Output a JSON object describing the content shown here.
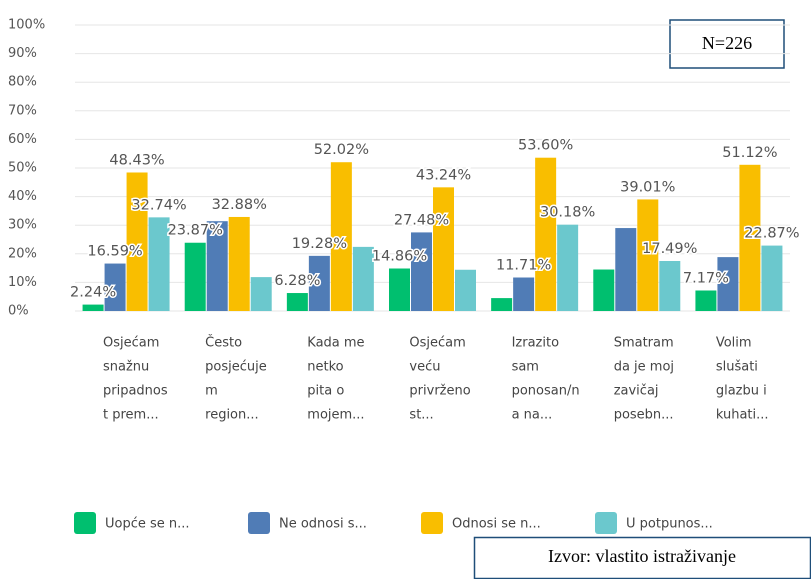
{
  "chart_data": {
    "type": "bar",
    "categories": [
      [
        "Osjećam",
        "snažnu",
        "pripadnos",
        "t prem..."
      ],
      [
        "Često",
        "posjećuje",
        "m",
        "region..."
      ],
      [
        "Kada me",
        "netko",
        "pita o",
        "mojem..."
      ],
      [
        "Osjećam",
        "veću",
        "privrženo",
        "st..."
      ],
      [
        "Izrazito",
        "sam",
        "ponosan/n",
        "a na..."
      ],
      [
        "Smatram",
        "da je moj",
        "zavičaj",
        "posebn..."
      ],
      [
        "Volim",
        "slušati",
        "glazbu i",
        "kuhati..."
      ]
    ],
    "series": [
      {
        "name": "Uopće se n...",
        "color": "#00bf6f",
        "values": [
          2.24,
          23.87,
          6.28,
          14.86,
          4.51,
          14.5,
          7.17
        ],
        "value_labels": [
          "2.24%",
          "23.87%",
          "6.28%",
          "14.86%",
          null,
          null,
          "7.17%"
        ]
      },
      {
        "name": "Ne odnosi s...",
        "color": "#507cb6",
        "values": [
          16.59,
          31.4,
          19.28,
          27.48,
          11.71,
          29.0,
          18.84
        ],
        "value_labels": [
          "16.59%",
          null,
          "19.28%",
          "27.48%",
          "11.71%",
          null,
          null
        ]
      },
      {
        "name": "Odnosi se n...",
        "color": "#f9be00",
        "values": [
          48.43,
          32.88,
          52.02,
          43.24,
          53.6,
          39.01,
          51.12
        ],
        "value_labels": [
          "48.43%",
          "32.88%",
          "52.02%",
          "43.24%",
          "53.60%",
          "39.01%",
          "51.12%"
        ]
      },
      {
        "name": "U potpunos...",
        "color": "#6bc8cd",
        "values": [
          32.74,
          11.85,
          22.42,
          14.42,
          30.18,
          17.49,
          22.87
        ],
        "value_labels": [
          "32.74%",
          null,
          null,
          null,
          "30.18%",
          "17.49%",
          "22.87%"
        ]
      }
    ],
    "ylim": [
      0,
      100
    ],
    "yticks": [
      {
        "value": 0,
        "label": "0%"
      },
      {
        "value": 10,
        "label": "10%"
      },
      {
        "value": 20,
        "label": "20%"
      },
      {
        "value": 30,
        "label": "30%"
      },
      {
        "value": 40,
        "label": "40%"
      },
      {
        "value": 50,
        "label": "50%"
      },
      {
        "value": 60,
        "label": "60%"
      },
      {
        "value": 70,
        "label": "70%"
      },
      {
        "value": 80,
        "label": "80%"
      },
      {
        "value": 90,
        "label": "90%"
      },
      {
        "value": 100,
        "label": "100%"
      }
    ],
    "grid": true,
    "annotations": [
      "N=226",
      "Izvor: vlastito istraživanje"
    ]
  }
}
